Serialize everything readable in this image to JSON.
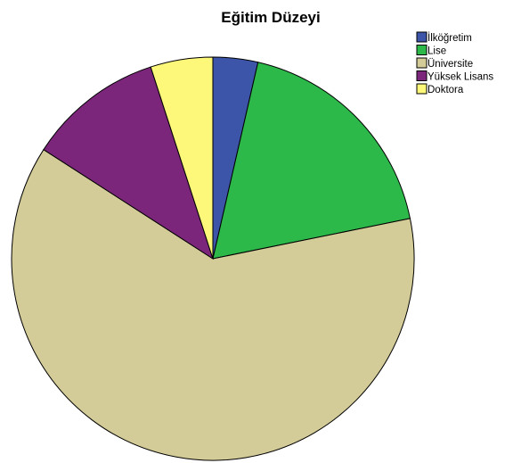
{
  "chart_data": {
    "type": "pie",
    "title": "Eğitim Düzeyi",
    "legend_position": "top-right",
    "slices": [
      {
        "label": "İlköğretim",
        "value": 3.6,
        "color": "#3c55a8"
      },
      {
        "label": "Lise",
        "value": 18.2,
        "color": "#2db84a"
      },
      {
        "label": "Üniversite",
        "value": 62.3,
        "color": "#d3cb98"
      },
      {
        "label": "Yüksek Lisans",
        "value": 10.9,
        "color": "#7b267a"
      },
      {
        "label": "Doktora",
        "value": 5.0,
        "color": "#fdf77a"
      }
    ]
  }
}
